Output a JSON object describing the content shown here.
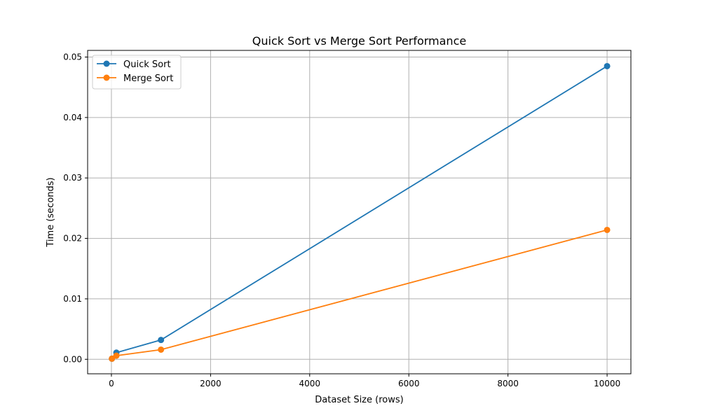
{
  "chart_data": {
    "type": "line",
    "title": "Quick Sort vs Merge Sort Performance",
    "xlabel": "Dataset Size (rows)",
    "ylabel": "Time (seconds)",
    "xlim": [
      -480,
      10480
    ],
    "ylim": [
      -0.0024,
      0.0511
    ],
    "xticks": [
      0,
      2000,
      4000,
      6000,
      8000,
      10000
    ],
    "xtick_labels": [
      "0",
      "2000",
      "4000",
      "6000",
      "8000",
      "10000"
    ],
    "yticks": [
      0.0,
      0.01,
      0.02,
      0.03,
      0.04,
      0.05
    ],
    "ytick_labels": [
      "0.00",
      "0.01",
      "0.02",
      "0.03",
      "0.04",
      "0.05"
    ],
    "grid": true,
    "legend_position": "top-left",
    "x": [
      10,
      100,
      1000,
      10000
    ],
    "series": [
      {
        "name": "Quick Sort",
        "color": "#1f77b4",
        "values": [
          0.0001,
          0.0011,
          0.0032,
          0.0485
        ]
      },
      {
        "name": "Merge Sort",
        "color": "#ff7f0e",
        "values": [
          0.0001,
          0.0006,
          0.0016,
          0.0214
        ]
      }
    ]
  }
}
